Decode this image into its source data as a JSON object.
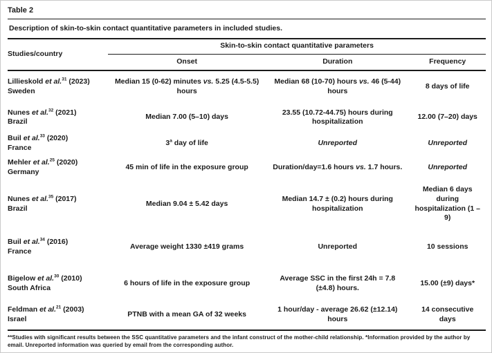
{
  "table": {
    "label": "Table 2",
    "caption": "Description of skin-to-skin contact quantitative parameters in included studies.",
    "header": {
      "studies": "Studies/country",
      "group": "Skin-to-skin contact quantitative parameters",
      "columns": [
        "Onset",
        "Duration",
        "Frequency"
      ]
    },
    "rows": [
      {
        "study": [
          {
            "t": "Lillieskold "
          },
          {
            "t": "et al.",
            "i": true
          },
          {
            "t": "31",
            "sup": true
          },
          {
            "t": " (2023)"
          }
        ],
        "country": "Sweden",
        "onset": [
          {
            "t": "Median 15 (0-62) minutes "
          },
          {
            "t": "vs.",
            "i": true
          },
          {
            "t": " 5.25 (4.5-5.5) hours"
          }
        ],
        "duration": [
          {
            "t": "Median 68 (10-70) hours "
          },
          {
            "t": "vs.",
            "i": true
          },
          {
            "t": " 46 (5-44) hours"
          }
        ],
        "frequency": [
          {
            "t": "8 days of life"
          }
        ]
      },
      {
        "study": [
          {
            "t": "Nunes "
          },
          {
            "t": "et al.",
            "i": true
          },
          {
            "t": "32",
            "sup": true
          },
          {
            "t": " (2021)"
          }
        ],
        "country": "Brazil",
        "onset": [
          {
            "t": "Median 7.00 (5–10) days"
          }
        ],
        "duration": [
          {
            "t": "23.55 (10.72-44.75) hours during hospitalization"
          }
        ],
        "frequency": [
          {
            "t": "12.00 (7–20) days"
          }
        ]
      },
      {
        "study": [
          {
            "t": "Buil "
          },
          {
            "t": "et al.",
            "i": true
          },
          {
            "t": "33",
            "sup": true
          },
          {
            "t": " (2020)"
          }
        ],
        "country": "France",
        "onset": [
          {
            "t": "3"
          },
          {
            "t": "a",
            "sup": true
          },
          {
            "t": " day of life"
          }
        ],
        "duration": [
          {
            "t": "Unreported",
            "i": true
          }
        ],
        "frequency": [
          {
            "t": "Unreported",
            "i": true
          }
        ]
      },
      {
        "study": [
          {
            "t": "Mehler "
          },
          {
            "t": "et al.",
            "i": true
          },
          {
            "t": "25",
            "sup": true
          },
          {
            "t": " (2020)"
          }
        ],
        "country": "Germany",
        "onset": [
          {
            "t": "45 min of life in the exposure group"
          }
        ],
        "duration": [
          {
            "t": "Duration/day=1.6 hours "
          },
          {
            "t": "vs.",
            "i": true
          },
          {
            "t": " 1.7 hours."
          }
        ],
        "frequency": [
          {
            "t": "Unreported",
            "i": true
          }
        ]
      },
      {
        "study": [
          {
            "t": "Nunes "
          },
          {
            "t": "et al.",
            "i": true
          },
          {
            "t": "35",
            "sup": true
          },
          {
            "t": " (2017)"
          }
        ],
        "country": "Brazil",
        "onset": [
          {
            "t": "Median 9.04 ± 5.42 days"
          }
        ],
        "duration": [
          {
            "t": "Median 14.7 ± (0.2) hours during hospitalization"
          }
        ],
        "frequency": [
          {
            "t": "Median 6 days during hospitalization (1 – 9)"
          }
        ]
      },
      {
        "study": [
          {
            "t": "Buil "
          },
          {
            "t": "et al.",
            "i": true
          },
          {
            "t": "34",
            "sup": true
          },
          {
            "t": " (2016)"
          }
        ],
        "country": "France",
        "onset": [
          {
            "t": "Average weight 1330 ±419 grams"
          }
        ],
        "duration": [
          {
            "t": "Unreported"
          }
        ],
        "frequency": [
          {
            "t": "10 sessions"
          }
        ]
      },
      {
        "study": [
          {
            "t": "Bigelow "
          },
          {
            "t": "et al.",
            "i": true
          },
          {
            "t": "30",
            "sup": true
          },
          {
            "t": " (2010)"
          }
        ],
        "country": "South Africa",
        "onset": [
          {
            "t": "6 hours of life in the exposure group"
          }
        ],
        "duration": [
          {
            "t": "Average SSC in the first 24h = 7.8 (±4.8) hours."
          }
        ],
        "frequency": [
          {
            "t": "15.00 (±9) days*"
          }
        ]
      },
      {
        "study": [
          {
            "t": "Feldman "
          },
          {
            "t": "et al.",
            "i": true
          },
          {
            "t": "21",
            "sup": true
          },
          {
            "t": " (2003)"
          }
        ],
        "country": "Israel",
        "onset": [
          {
            "t": "PTNB with a mean GA of 32 weeks"
          }
        ],
        "duration": [
          {
            "t": "1 hour/day - average 26.62 (±12.14) hours"
          }
        ],
        "frequency": [
          {
            "t": "14 consecutive days"
          }
        ]
      }
    ],
    "footnote": "**Studies with significant results between the SSC quantitative parameters and the infant construct of the mother-child relationship. *Information provided by the author by email. Unreported information was queried by email from the corresponding author."
  }
}
